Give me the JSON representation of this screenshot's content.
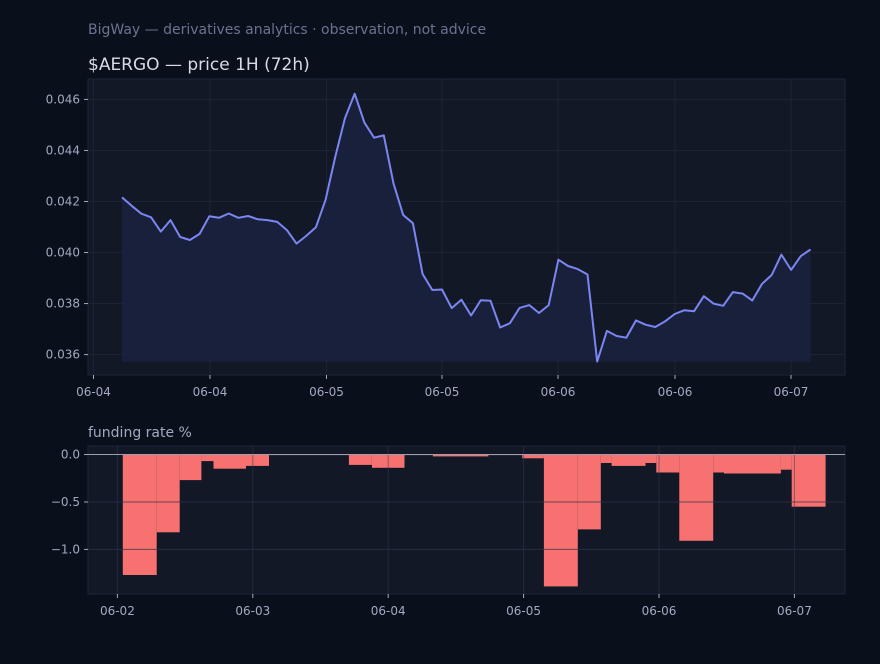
{
  "header": {
    "caption": "BigWay — derivatives analytics · observation, not advice"
  },
  "colors": {
    "background": "#0a0f1c",
    "panel": "#131827",
    "line": "#7b86f2",
    "area_fill": "#1a2240",
    "bar": "#f87171",
    "tick_text": "#a3a9bf",
    "caption_text": "#6b7390",
    "title_text": "#d8dbe6"
  },
  "chart_data": [
    {
      "type": "line",
      "title": "$AERGO — price 1H (72h)",
      "xlabel": "",
      "ylabel": "",
      "ylim": [
        0.0352,
        0.0468
      ],
      "yticks": [
        "0.036",
        "0.038",
        "0.040",
        "0.042",
        "0.044",
        "0.046"
      ],
      "xticks": [
        "06-04",
        "06-04",
        "06-05",
        "06-05",
        "06-06",
        "06-06",
        "06-07"
      ],
      "grid": true,
      "series": [
        {
          "values": [
            0.04216,
            0.04183,
            0.04152,
            0.04138,
            0.04082,
            0.04127,
            0.04061,
            0.04049,
            0.04073,
            0.04142,
            0.04136,
            0.04153,
            0.04136,
            0.04143,
            0.0413,
            0.04127,
            0.0412,
            0.04088,
            0.04035,
            0.04065,
            0.04099,
            0.04207,
            0.04376,
            0.04527,
            0.04622,
            0.04509,
            0.0445,
            0.04459,
            0.04271,
            0.04147,
            0.04115,
            0.03916,
            0.03853,
            0.03855,
            0.03782,
            0.03815,
            0.03753,
            0.03813,
            0.03811,
            0.03706,
            0.03723,
            0.03783,
            0.03794,
            0.03763,
            0.03794,
            0.03972,
            0.03947,
            0.03935,
            0.03914,
            0.03573,
            0.03693,
            0.03673,
            0.03666,
            0.03734,
            0.03717,
            0.03708,
            0.0373,
            0.03759,
            0.03774,
            0.0377,
            0.03829,
            0.038,
            0.03791,
            0.03845,
            0.03839,
            0.03812,
            0.03877,
            0.03912,
            0.03992,
            0.03932,
            0.03986,
            0.04012
          ]
        }
      ]
    },
    {
      "type": "bar",
      "title": "funding rate %",
      "xlabel": "",
      "ylabel": "",
      "ylim": [
        -1.47,
        0.09
      ],
      "yticks": [
        "0.0",
        "−0.5",
        "−1.0"
      ],
      "xticks": [
        "06-02",
        "06-03",
        "06-04",
        "06-05",
        "06-06",
        "06-07"
      ],
      "x_start": "06-02",
      "grid": true,
      "bars": [
        {
          "t": 0.04,
          "w": 0.25,
          "v": -1.27
        },
        {
          "t": 0.29,
          "w": 0.17,
          "v": -0.82
        },
        {
          "t": 0.46,
          "w": 0.16,
          "v": -0.27
        },
        {
          "t": 0.62,
          "w": 0.09,
          "v": -0.07
        },
        {
          "t": 0.71,
          "w": 0.24,
          "v": -0.15
        },
        {
          "t": 0.95,
          "w": 0.17,
          "v": -0.12
        },
        {
          "t": 1.12,
          "w": 0.59,
          "v": -0.005
        },
        {
          "t": 1.71,
          "w": 0.17,
          "v": -0.11
        },
        {
          "t": 1.88,
          "w": 0.24,
          "v": -0.14
        },
        {
          "t": 2.12,
          "w": 0.21,
          "v": -0.005
        },
        {
          "t": 2.33,
          "w": 0.41,
          "v": -0.02
        },
        {
          "t": 2.74,
          "w": 0.25,
          "v": -0.005
        },
        {
          "t": 2.99,
          "w": 0.16,
          "v": -0.04
        },
        {
          "t": 3.15,
          "w": 0.25,
          "v": -1.39
        },
        {
          "t": 3.4,
          "w": 0.17,
          "v": -0.79
        },
        {
          "t": 3.57,
          "w": 0.08,
          "v": -0.09
        },
        {
          "t": 3.65,
          "w": 0.25,
          "v": -0.12
        },
        {
          "t": 3.9,
          "w": 0.08,
          "v": -0.09
        },
        {
          "t": 3.98,
          "w": 0.17,
          "v": -0.19
        },
        {
          "t": 4.15,
          "w": 0.25,
          "v": -0.91
        },
        {
          "t": 4.4,
          "w": 0.08,
          "v": -0.19
        },
        {
          "t": 4.48,
          "w": 0.42,
          "v": -0.2
        },
        {
          "t": 4.9,
          "w": 0.08,
          "v": -0.16
        },
        {
          "t": 4.98,
          "w": 0.25,
          "v": -0.55
        }
      ]
    }
  ]
}
